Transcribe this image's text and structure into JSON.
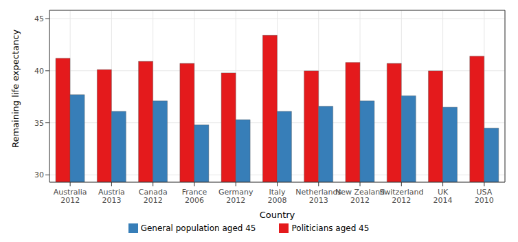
{
  "chart_data": {
    "type": "bar",
    "categories": [
      "Australia\n2012",
      "Austria\n2013",
      "Canada\n2012",
      "France\n2006",
      "Germany\n2012",
      "Italy\n2008",
      "Netherlands\n2013",
      "New Zealand\n2012",
      "Switzerland\n2012",
      "UK\n2014",
      "USA\n2010"
    ],
    "series": [
      {
        "name": "Politicians aged 45",
        "color": "#e41a1c",
        "values": [
          41.2,
          40.1,
          40.9,
          40.7,
          39.8,
          43.4,
          40.0,
          40.8,
          40.7,
          40.0,
          41.4
        ]
      },
      {
        "name": "General population aged 45",
        "color": "#377eb8",
        "values": [
          37.7,
          36.1,
          37.1,
          34.8,
          35.3,
          36.1,
          36.6,
          37.1,
          37.6,
          36.5,
          34.5
        ]
      }
    ],
    "x_label": "Country",
    "y_label": "Remaining life expectancy",
    "ylim": [
      29.3,
      45.8
    ],
    "yticks": [
      30,
      35,
      40,
      45
    ],
    "grid": true,
    "legend": "bottom"
  }
}
